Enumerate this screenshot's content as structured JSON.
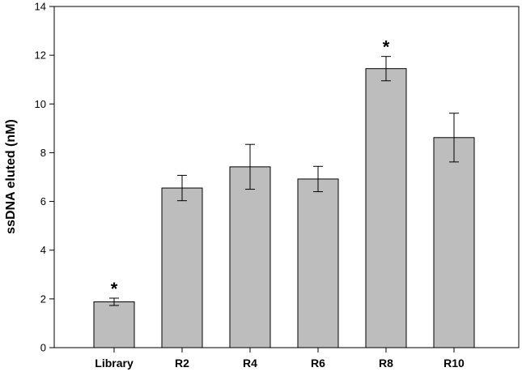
{
  "chart_data": {
    "type": "bar",
    "title": "",
    "xlabel": "",
    "ylabel": "ssDNA eluted (nM)",
    "ylim": [
      0,
      14
    ],
    "yticks": [
      0,
      2,
      4,
      6,
      8,
      10,
      12,
      14
    ],
    "categories": [
      "Library",
      "R2",
      "R4",
      "R6",
      "R8",
      "R10"
    ],
    "values": [
      1.88,
      6.55,
      7.42,
      6.92,
      11.45,
      8.62
    ],
    "errors": [
      0.15,
      0.52,
      0.92,
      0.52,
      0.5,
      1.0
    ],
    "annotations": [
      "*",
      "",
      "",
      "",
      "*",
      ""
    ],
    "grid": false,
    "bar_color": "#bdbdbd",
    "edge_color": "#000000"
  }
}
